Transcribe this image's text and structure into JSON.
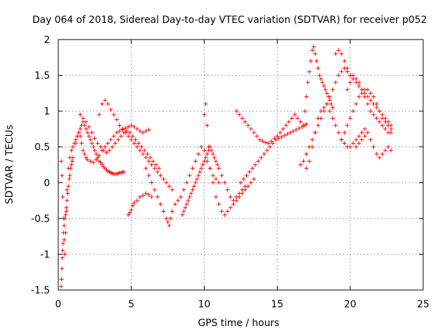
{
  "chart_data": {
    "type": "scatter",
    "title": "Day 064 of 2018, Sidereal Day-to-day VTEC variation (SDTVAR) for receiver p052",
    "xlabel": "GPS time / hours",
    "ylabel": "SDTVAR / TECUs",
    "xlim": [
      0,
      25
    ],
    "ylim": [
      -1.5,
      2
    ],
    "xticks": [
      "0",
      "5",
      "10",
      "15",
      "20",
      "25"
    ],
    "yticks": [
      "-1.5",
      "-1",
      "-0.5",
      "0",
      "0.5",
      "1",
      "1.5",
      "2"
    ],
    "grid": true,
    "legend": "none",
    "marker": "+",
    "color": "#ff0000",
    "series": [
      {
        "name": "SDTVAR",
        "x": [
          0.2,
          0.22,
          0.25,
          0.28,
          0.3,
          0.33,
          0.36,
          0.4,
          0.45,
          0.5,
          0.55,
          0.6,
          0.65,
          0.7,
          0.75,
          0.8,
          0.85,
          0.9,
          0.95,
          1.0,
          0.2,
          0.25,
          0.3,
          0.35,
          0.4,
          0.45,
          0.5,
          0.55,
          0.6,
          0.7,
          0.8,
          0.9,
          1.0,
          1.1,
          1.2,
          1.3,
          1.4,
          1.5,
          1.6,
          1.7,
          1.8,
          1.9,
          2.0,
          2.1,
          2.2,
          2.3,
          2.4,
          2.5,
          2.6,
          2.7,
          2.8,
          2.9,
          3.0,
          3.1,
          3.2,
          3.3,
          3.4,
          3.5,
          3.6,
          3.7,
          3.8,
          3.9,
          4.0,
          4.1,
          4.2,
          4.3,
          4.4,
          4.5,
          1.2,
          1.3,
          1.4,
          1.5,
          1.6,
          1.7,
          1.8,
          1.9,
          2.0,
          2.2,
          2.4,
          2.6,
          2.8,
          3.0,
          3.2,
          3.4,
          3.6,
          3.8,
          4.0,
          4.2,
          4.4,
          4.6,
          4.8,
          5.0,
          5.2,
          5.4,
          5.6,
          5.8,
          6.0,
          6.2,
          1.5,
          1.7,
          1.9,
          2.1,
          2.3,
          2.5,
          2.7,
          2.9,
          3.1,
          3.3,
          3.5,
          3.7,
          3.9,
          4.1,
          4.3,
          4.5,
          4.7,
          4.9,
          5.1,
          5.3,
          5.5,
          5.7,
          5.9,
          6.1,
          6.3,
          6.5,
          6.7,
          6.9,
          2.8,
          3.0,
          3.2,
          3.4,
          3.6,
          3.8,
          4.0,
          4.2,
          4.4,
          4.6,
          4.8,
          5.0,
          5.2,
          5.4,
          5.6,
          5.8,
          6.0,
          6.2,
          6.4,
          6.6,
          6.8,
          7.0,
          7.2,
          7.4,
          7.6,
          7.8,
          4.8,
          4.9,
          5.0,
          5.1,
          5.2,
          5.4,
          5.6,
          5.8,
          6.0,
          6.2,
          6.4,
          6.0,
          6.2,
          6.4,
          6.6,
          6.8,
          7.0,
          7.2,
          7.4,
          7.5,
          7.6,
          7.7,
          7.8,
          8.0,
          8.2,
          8.4,
          8.6,
          8.8,
          9.0,
          9.2,
          9.4,
          9.6,
          9.8,
          10.0,
          10.2,
          10.4,
          10.6,
          10.8,
          11.0,
          8.5,
          8.6,
          8.7,
          8.8,
          8.9,
          9.0,
          9.1,
          9.2,
          9.3,
          9.4,
          9.5,
          9.6,
          9.7,
          9.8,
          9.9,
          10.0,
          10.1,
          10.2,
          10.3,
          10.4,
          10.5,
          10.6,
          10.7,
          10.8,
          10.9,
          11.0,
          11.2,
          11.4,
          11.6,
          11.8,
          12.0,
          12.2,
          12.4,
          12.6,
          12.8,
          10.0,
          10.1,
          10.2,
          10.3,
          10.4,
          10.6,
          10.8,
          11.0,
          11.2,
          11.4,
          11.6,
          11.8,
          12.0,
          12.2,
          12.4,
          12.6,
          12.8,
          13.0,
          13.2,
          13.4,
          12.2,
          12.4,
          12.6,
          12.8,
          13.0,
          13.2,
          13.4,
          13.6,
          13.8,
          14.0,
          14.2,
          14.4,
          14.6,
          14.8,
          15.0,
          15.2,
          15.4,
          15.6,
          15.8,
          16.0,
          16.2,
          16.4,
          16.6,
          16.8,
          12.5,
          12.7,
          12.9,
          13.1,
          13.3,
          13.5,
          13.7,
          13.9,
          14.1,
          14.3,
          14.5,
          14.7,
          14.9,
          15.1,
          15.3,
          15.5,
          15.7,
          15.9,
          16.1,
          16.3,
          16.5,
          16.7,
          16.9,
          17.0,
          16.9,
          17.0,
          17.1,
          17.2,
          17.3,
          17.4,
          17.5,
          17.6,
          17.7,
          17.8,
          17.9,
          18.0,
          18.1,
          18.2,
          18.3,
          18.4,
          18.5,
          18.6,
          18.7,
          18.8,
          16.6,
          16.8,
          17.0,
          17.2,
          17.4,
          17.6,
          17.8,
          18.0,
          18.2,
          18.4,
          18.6,
          18.8,
          19.0,
          19.2,
          19.4,
          19.6,
          19.8,
          20.0,
          17.0,
          17.2,
          17.4,
          17.6,
          17.8,
          18.0,
          18.2,
          18.4,
          18.6,
          18.8,
          19.0,
          19.2,
          19.4,
          19.6,
          19.8,
          20.0,
          20.2,
          20.4,
          20.6,
          20.8,
          21.0,
          19.0,
          19.2,
          19.4,
          19.6,
          19.8,
          20.0,
          20.2,
          20.4,
          20.6,
          20.8,
          21.0,
          21.2,
          21.4,
          21.6,
          21.8,
          22.0,
          22.2,
          22.4,
          22.6,
          22.8,
          19.4,
          19.6,
          19.8,
          20.0,
          20.2,
          20.4,
          20.6,
          20.8,
          21.0,
          21.2,
          21.4,
          21.6,
          21.8,
          22.0,
          22.2,
          22.4,
          22.6,
          22.8,
          19.8,
          20.0,
          20.2,
          20.4,
          20.6,
          20.8,
          21.0,
          21.2,
          21.4,
          21.6,
          21.8,
          22.0,
          22.2,
          22.4,
          22.6,
          22.8,
          20.4,
          20.6,
          20.8,
          21.0,
          21.2,
          21.4,
          21.6,
          21.8,
          22.0,
          22.2,
          22.4,
          22.6,
          22.8
        ],
        "y": [
          -1.45,
          -1.35,
          -1.2,
          -1.05,
          -0.95,
          -0.85,
          -0.7,
          -0.6,
          -0.5,
          -0.45,
          -0.35,
          -0.25,
          -0.15,
          -0.05,
          0.05,
          0.1,
          0.2,
          0.25,
          0.3,
          0.35,
          0.3,
          0.1,
          -0.2,
          -0.5,
          -0.8,
          -1.0,
          -0.7,
          -0.4,
          -0.1,
          0.2,
          0.35,
          0.45,
          0.5,
          0.55,
          0.6,
          0.65,
          0.7,
          0.75,
          0.8,
          0.85,
          0.8,
          0.75,
          0.7,
          0.65,
          0.6,
          0.55,
          0.5,
          0.45,
          0.4,
          0.35,
          0.3,
          0.28,
          0.25,
          0.22,
          0.2,
          0.18,
          0.16,
          0.15,
          0.14,
          0.13,
          0.12,
          0.12,
          0.12,
          0.13,
          0.14,
          0.14,
          0.15,
          0.15,
          0.55,
          0.65,
          0.7,
          0.65,
          0.55,
          0.45,
          0.4,
          0.35,
          0.32,
          0.3,
          0.28,
          0.32,
          0.38,
          0.45,
          0.5,
          0.55,
          0.6,
          0.65,
          0.7,
          0.72,
          0.74,
          0.76,
          0.78,
          0.8,
          0.78,
          0.75,
          0.72,
          0.7,
          0.72,
          0.74,
          0.95,
          0.9,
          0.85,
          0.78,
          0.7,
          0.62,
          0.55,
          0.5,
          0.45,
          0.42,
          0.45,
          0.5,
          0.55,
          0.6,
          0.65,
          0.7,
          0.72,
          0.7,
          0.65,
          0.6,
          0.55,
          0.5,
          0.45,
          0.4,
          0.35,
          0.3,
          0.25,
          0.2,
          0.95,
          1.1,
          1.15,
          1.1,
          1.02,
          0.95,
          0.88,
          0.8,
          0.75,
          0.7,
          0.65,
          0.6,
          0.55,
          0.5,
          0.45,
          0.4,
          0.35,
          0.3,
          0.25,
          0.2,
          0.15,
          0.1,
          0.05,
          0.0,
          -0.05,
          -0.1,
          -0.45,
          -0.42,
          -0.38,
          -0.32,
          -0.28,
          -0.25,
          -0.2,
          -0.18,
          -0.15,
          -0.17,
          -0.2,
          0.2,
          0.1,
          0.0,
          -0.1,
          -0.2,
          -0.3,
          -0.4,
          -0.5,
          -0.55,
          -0.6,
          -0.5,
          -0.4,
          -0.3,
          -0.25,
          -0.2,
          -0.1,
          0.0,
          0.1,
          0.2,
          0.3,
          0.4,
          0.5,
          0.45,
          0.3,
          0.2,
          0.1,
          0.05,
          0.0,
          -0.45,
          -0.4,
          -0.35,
          -0.3,
          -0.25,
          -0.2,
          -0.15,
          -0.1,
          -0.05,
          0.0,
          0.05,
          0.1,
          0.15,
          0.2,
          0.25,
          0.3,
          0.35,
          0.4,
          0.45,
          0.5,
          0.45,
          0.4,
          0.35,
          0.3,
          0.25,
          0.2,
          0.1,
          0.0,
          -0.1,
          -0.2,
          -0.25,
          -0.2,
          -0.15,
          -0.1,
          -0.05,
          0.95,
          1.1,
          0.8,
          0.5,
          0.2,
          0.0,
          -0.2,
          -0.3,
          -0.4,
          -0.45,
          -0.4,
          -0.35,
          -0.3,
          -0.25,
          -0.2,
          -0.15,
          -0.1,
          -0.05,
          0.0,
          0.05,
          1.0,
          0.95,
          0.9,
          0.85,
          0.8,
          0.75,
          0.7,
          0.65,
          0.6,
          0.58,
          0.56,
          0.55,
          0.58,
          0.62,
          0.65,
          0.7,
          0.75,
          0.8,
          0.85,
          0.9,
          0.95,
          0.9,
          0.85,
          0.8,
          0.0,
          0.05,
          0.1,
          0.15,
          0.2,
          0.25,
          0.3,
          0.35,
          0.4,
          0.45,
          0.5,
          0.55,
          0.6,
          0.62,
          0.64,
          0.66,
          0.68,
          0.7,
          0.72,
          0.74,
          0.76,
          0.78,
          0.8,
          0.82,
          1.0,
          1.2,
          1.4,
          1.55,
          1.7,
          1.85,
          1.9,
          1.8,
          1.7,
          1.6,
          1.5,
          1.45,
          1.4,
          1.35,
          1.3,
          1.25,
          1.2,
          1.15,
          1.1,
          1.05,
          0.25,
          0.3,
          0.4,
          0.5,
          0.6,
          0.7,
          0.8,
          0.9,
          1.0,
          1.1,
          1.2,
          1.3,
          1.4,
          1.5,
          1.55,
          1.6,
          1.55,
          1.5,
          0.2,
          0.3,
          0.5,
          0.7,
          0.9,
          1.0,
          1.05,
          1.1,
          1.0,
          0.9,
          0.8,
          0.7,
          0.6,
          0.55,
          0.5,
          0.5,
          0.55,
          0.6,
          0.65,
          0.7,
          0.75,
          1.8,
          1.85,
          1.8,
          1.7,
          1.6,
          1.5,
          1.45,
          1.4,
          1.35,
          1.3,
          1.25,
          1.2,
          1.15,
          1.1,
          1.05,
          1.0,
          0.95,
          0.9,
          0.85,
          0.8,
          0.6,
          0.7,
          0.8,
          0.9,
          1.0,
          1.1,
          1.2,
          1.25,
          1.3,
          1.3,
          1.25,
          1.2,
          1.1,
          1.0,
          0.9,
          0.85,
          0.8,
          0.75,
          1.3,
          1.4,
          1.5,
          1.45,
          1.4,
          1.3,
          1.2,
          1.1,
          1.0,
          0.95,
          0.9,
          0.85,
          0.8,
          0.75,
          0.7,
          0.7,
          0.5,
          0.55,
          0.6,
          0.65,
          0.7,
          0.6,
          0.5,
          0.4,
          0.35,
          0.4,
          0.45,
          0.5,
          0.45
        ]
      }
    ]
  }
}
